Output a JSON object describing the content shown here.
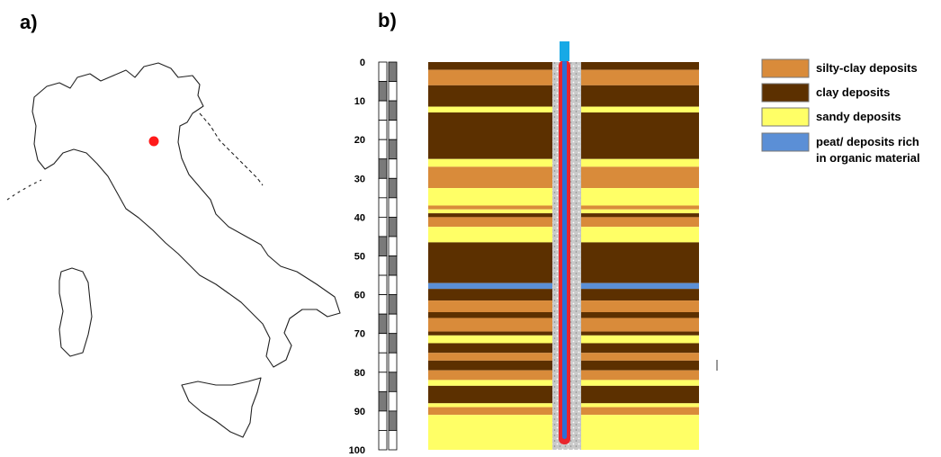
{
  "panels": {
    "a_label": "a)",
    "b_label": "b)"
  },
  "map": {
    "marker_color": "#ff1a1a"
  },
  "column": {
    "depth_ticks": [
      "0",
      "10",
      "20",
      "30",
      "40",
      "50",
      "60",
      "70",
      "80",
      "90",
      "100"
    ],
    "depth_range": [
      0,
      100
    ],
    "colors": {
      "silty_clay": "#d98b3a",
      "clay": "#5c3000",
      "sandy": "#ffff66",
      "peat": "#5b8fd6",
      "pipe_outer": "#e8262d",
      "pipe_inner": "#2b6fd6",
      "pipe_top": "#17a9e6"
    },
    "layers": [
      {
        "top": 0,
        "bottom": 2,
        "type": "clay"
      },
      {
        "top": 2,
        "bottom": 6,
        "type": "silty_clay"
      },
      {
        "top": 6,
        "bottom": 11.5,
        "type": "clay"
      },
      {
        "top": 11.5,
        "bottom": 13,
        "type": "sandy"
      },
      {
        "top": 13,
        "bottom": 25,
        "type": "clay"
      },
      {
        "top": 25,
        "bottom": 27,
        "type": "sandy"
      },
      {
        "top": 27,
        "bottom": 32.5,
        "type": "silty_clay"
      },
      {
        "top": 32.5,
        "bottom": 37,
        "type": "sandy"
      },
      {
        "top": 37,
        "bottom": 38,
        "type": "silty_clay"
      },
      {
        "top": 38,
        "bottom": 39,
        "type": "sandy"
      },
      {
        "top": 39,
        "bottom": 40,
        "type": "clay"
      },
      {
        "top": 40,
        "bottom": 42.5,
        "type": "silty_clay"
      },
      {
        "top": 42.5,
        "bottom": 46.5,
        "type": "sandy"
      },
      {
        "top": 46.5,
        "bottom": 57,
        "type": "clay"
      },
      {
        "top": 57,
        "bottom": 58.5,
        "type": "peat"
      },
      {
        "top": 58.5,
        "bottom": 61.5,
        "type": "clay"
      },
      {
        "top": 61.5,
        "bottom": 64.5,
        "type": "silty_clay"
      },
      {
        "top": 64.5,
        "bottom": 66,
        "type": "clay"
      },
      {
        "top": 66,
        "bottom": 69.5,
        "type": "silty_clay"
      },
      {
        "top": 69.5,
        "bottom": 70.5,
        "type": "clay"
      },
      {
        "top": 70.5,
        "bottom": 72.5,
        "type": "sandy"
      },
      {
        "top": 72.5,
        "bottom": 75,
        "type": "clay"
      },
      {
        "top": 75,
        "bottom": 77,
        "type": "silty_clay"
      },
      {
        "top": 77,
        "bottom": 79.5,
        "type": "clay"
      },
      {
        "top": 79.5,
        "bottom": 82,
        "type": "silty_clay"
      },
      {
        "top": 82,
        "bottom": 83.5,
        "type": "sandy"
      },
      {
        "top": 83.5,
        "bottom": 88,
        "type": "clay"
      },
      {
        "top": 88,
        "bottom": 89,
        "type": "sandy"
      },
      {
        "top": 89,
        "bottom": 91,
        "type": "silty_clay"
      },
      {
        "top": 91,
        "bottom": 100,
        "type": "sandy"
      }
    ]
  },
  "legend": {
    "items": [
      {
        "lines": [
          "silty-clay deposits"
        ],
        "type": "silty_clay"
      },
      {
        "lines": [
          "clay deposits"
        ],
        "type": "clay"
      },
      {
        "lines": [
          "sandy deposits"
        ],
        "type": "sandy"
      },
      {
        "lines": [
          "peat/ deposits rich",
          "in organic material"
        ],
        "type": "peat"
      }
    ]
  }
}
